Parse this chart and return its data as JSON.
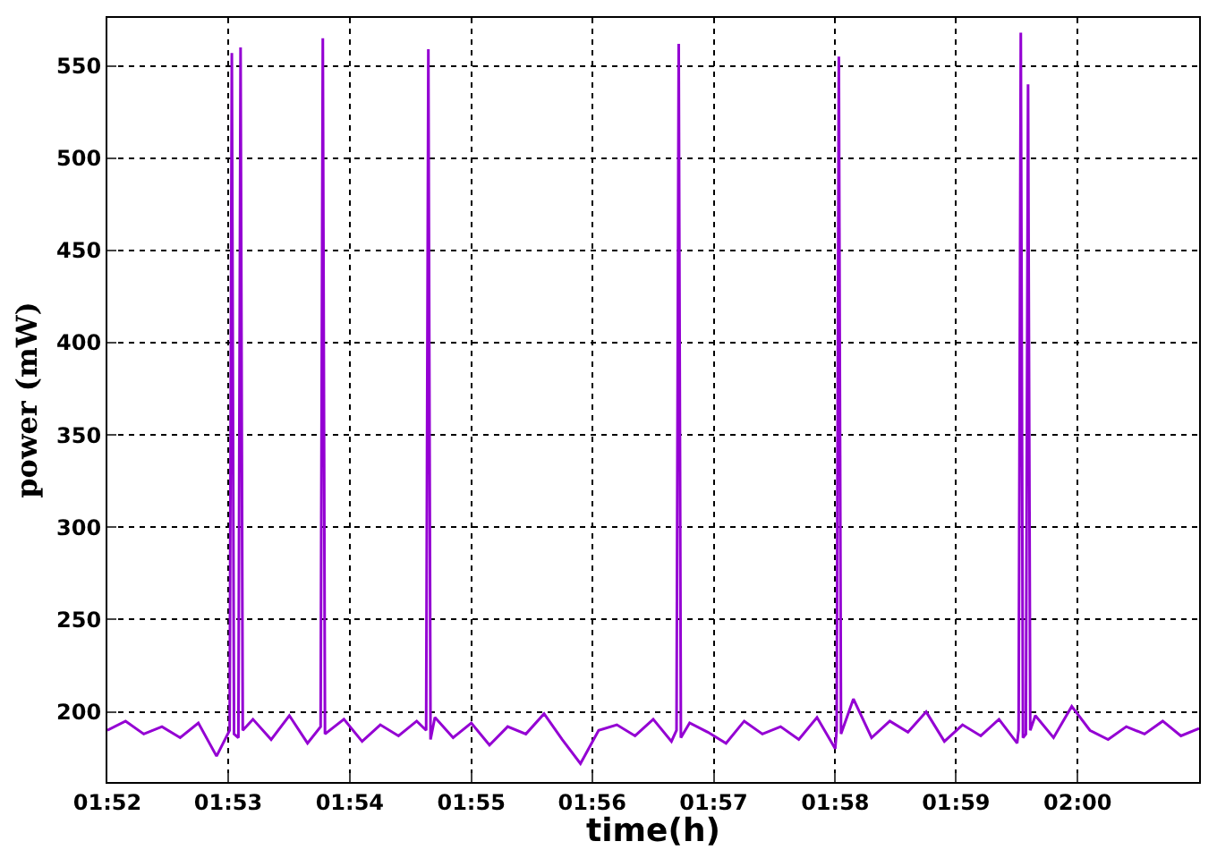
{
  "chart_data": {
    "type": "line",
    "xlabel": "time(h)",
    "ylabel": "power (mW)",
    "xlim": [
      1.8667,
      2.0167
    ],
    "xticks": [
      {
        "value": 1.8667,
        "label": "01:52"
      },
      {
        "value": 1.8833,
        "label": "01:53"
      },
      {
        "value": 1.9,
        "label": "01:54"
      },
      {
        "value": 1.9167,
        "label": "01:55"
      },
      {
        "value": 1.9333,
        "label": "01:56"
      },
      {
        "value": 1.95,
        "label": "01:57"
      },
      {
        "value": 1.9667,
        "label": "01:58"
      },
      {
        "value": 1.9833,
        "label": "01:59"
      },
      {
        "value": 2.0,
        "label": "02:00"
      }
    ],
    "ylim": [
      162,
      576
    ],
    "yticks": [
      200,
      250,
      300,
      350,
      400,
      450,
      500,
      550
    ],
    "grid": true,
    "line_style": "solid",
    "marker": "none",
    "series": [
      {
        "color": "#9400d3",
        "x": [
          1.8667,
          1.8692,
          1.8717,
          1.8742,
          1.8767,
          1.8792,
          1.8817,
          1.8835,
          1.8838,
          1.8841,
          1.8847,
          1.885,
          1.8853,
          1.8867,
          1.8892,
          1.8917,
          1.8942,
          1.896,
          1.8963,
          1.8966,
          1.8992,
          1.9017,
          1.9042,
          1.9067,
          1.9092,
          1.9105,
          1.9108,
          1.9111,
          1.9117,
          1.9142,
          1.9167,
          1.9192,
          1.9217,
          1.9242,
          1.9267,
          1.9292,
          1.9317,
          1.9342,
          1.9367,
          1.9392,
          1.9417,
          1.9442,
          1.9449,
          1.9452,
          1.9455,
          1.9467,
          1.9492,
          1.9517,
          1.9542,
          1.9567,
          1.9592,
          1.9617,
          1.9642,
          1.9667,
          1.9669,
          1.9672,
          1.9675,
          1.9692,
          1.9717,
          1.9742,
          1.9767,
          1.9792,
          1.9817,
          1.9842,
          1.9867,
          1.9892,
          1.9917,
          1.9919,
          1.9922,
          1.9925,
          1.9929,
          1.9932,
          1.9935,
          1.9942,
          1.9967,
          1.9992,
          2.0017,
          2.0042,
          2.0067,
          2.0092,
          2.0117,
          2.0142,
          2.0167
        ],
        "values": [
          190,
          195,
          188,
          192,
          186,
          194,
          176,
          190,
          557,
          188,
          186,
          560,
          190,
          196,
          185,
          198,
          183,
          192,
          565,
          188,
          196,
          184,
          193,
          187,
          195,
          190,
          559,
          185,
          197,
          186,
          194,
          182,
          192,
          188,
          199,
          185,
          172,
          190,
          193,
          187,
          196,
          184,
          190,
          562,
          186,
          194,
          189,
          183,
          195,
          188,
          192,
          185,
          197,
          180,
          190,
          555,
          188,
          207,
          186,
          195,
          189,
          200,
          184,
          193,
          187,
          196,
          183,
          190,
          568,
          186,
          188,
          540,
          190,
          198,
          186,
          203,
          190,
          185,
          192,
          188,
          195,
          187,
          191
        ]
      }
    ]
  }
}
